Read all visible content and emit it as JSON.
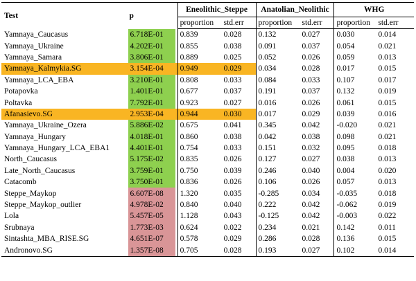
{
  "headers": {
    "test": "Test",
    "p": "p",
    "groups": [
      "Eneolithic_Steppe",
      "Anatolian_Neolithic",
      "WHG"
    ],
    "sub": [
      "proportion",
      "std.err"
    ]
  },
  "colors": {
    "green": "#8ed04f",
    "red": "#d99597",
    "highlight": "#f9b523"
  },
  "rows": [
    {
      "test": "Yamnaya_Caucasus",
      "p": "6.718E-01",
      "pc": "green",
      "hl": false,
      "v": [
        "0.839",
        "0.028",
        "0.132",
        "0.027",
        "0.030",
        "0.014"
      ]
    },
    {
      "test": "Yamnaya_Ukraine",
      "p": "4.202E-01",
      "pc": "green",
      "hl": false,
      "v": [
        "0.855",
        "0.038",
        "0.091",
        "0.037",
        "0.054",
        "0.021"
      ]
    },
    {
      "test": "Yamnaya_Samara",
      "p": "3.806E-01",
      "pc": "green",
      "hl": false,
      "v": [
        "0.889",
        "0.025",
        "0.052",
        "0.026",
        "0.059",
        "0.013"
      ]
    },
    {
      "test": "Yamnaya_Kalmykia.SG",
      "p": "3.154E-04",
      "pc": "",
      "hl": true,
      "v": [
        "0.949",
        "0.029",
        "0.034",
        "0.028",
        "0.017",
        "0.015"
      ]
    },
    {
      "test": "Yamnaya_LCA_EBA",
      "p": "3.210E-01",
      "pc": "green",
      "hl": false,
      "v": [
        "0.808",
        "0.033",
        "0.084",
        "0.033",
        "0.107",
        "0.017"
      ]
    },
    {
      "test": "Potapovka",
      "p": "1.401E-01",
      "pc": "green",
      "hl": false,
      "v": [
        "0.677",
        "0.037",
        "0.191",
        "0.037",
        "0.132",
        "0.019"
      ]
    },
    {
      "test": "Poltavka",
      "p": "7.792E-01",
      "pc": "green",
      "hl": false,
      "v": [
        "0.923",
        "0.027",
        "0.016",
        "0.026",
        "0.061",
        "0.015"
      ]
    },
    {
      "test": "Afanasievo.SG",
      "p": "2.953E-04",
      "pc": "",
      "hl": true,
      "v": [
        "0.944",
        "0.030",
        "0.017",
        "0.029",
        "0.039",
        "0.016"
      ]
    },
    {
      "test": "Yamnaya_Ukraine_Ozera",
      "p": "5.886E-02",
      "pc": "green",
      "hl": false,
      "v": [
        "0.675",
        "0.041",
        "0.345",
        "0.042",
        "-0.020",
        "0.021"
      ]
    },
    {
      "test": "Yamnaya_Hungary",
      "p": "4.018E-01",
      "pc": "green",
      "hl": false,
      "v": [
        "0.860",
        "0.038",
        "0.042",
        "0.038",
        "0.098",
        "0.021"
      ]
    },
    {
      "test": "Yamnaya_Hungary_LCA_EBA1",
      "p": "4.401E-01",
      "pc": "green",
      "hl": false,
      "v": [
        "0.754",
        "0.033",
        "0.151",
        "0.032",
        "0.095",
        "0.018"
      ]
    },
    {
      "test": "North_Caucasus",
      "p": "5.175E-02",
      "pc": "green",
      "hl": false,
      "v": [
        "0.835",
        "0.026",
        "0.127",
        "0.027",
        "0.038",
        "0.013"
      ]
    },
    {
      "test": "Late_North_Caucasus",
      "p": "3.759E-01",
      "pc": "green",
      "hl": false,
      "v": [
        "0.750",
        "0.039",
        "0.246",
        "0.040",
        "0.004",
        "0.020"
      ]
    },
    {
      "test": "Catacomb",
      "p": "3.750E-01",
      "pc": "green",
      "hl": false,
      "v": [
        "0.836",
        "0.026",
        "0.106",
        "0.026",
        "0.057",
        "0.013"
      ]
    },
    {
      "test": "Steppe_Maykop",
      "p": "6.607E-08",
      "pc": "red",
      "hl": false,
      "v": [
        "1.320",
        "0.035",
        "-0.285",
        "0.034",
        "-0.035",
        "0.018"
      ]
    },
    {
      "test": "Steppe_Maykop_outlier",
      "p": "4.978E-02",
      "pc": "red",
      "hl": false,
      "v": [
        "0.840",
        "0.040",
        "0.222",
        "0.042",
        "-0.062",
        "0.019"
      ]
    },
    {
      "test": "Lola",
      "p": "5.457E-05",
      "pc": "red",
      "hl": false,
      "v": [
        "1.128",
        "0.043",
        "-0.125",
        "0.042",
        "-0.003",
        "0.022"
      ]
    },
    {
      "test": "Srubnaya",
      "p": "1.773E-03",
      "pc": "red",
      "hl": false,
      "v": [
        "0.624",
        "0.022",
        "0.234",
        "0.021",
        "0.142",
        "0.011"
      ]
    },
    {
      "test": "Sintashta_MBA_RISE.SG",
      "p": "4.651E-07",
      "pc": "red",
      "hl": false,
      "v": [
        "0.578",
        "0.029",
        "0.286",
        "0.028",
        "0.136",
        "0.015"
      ]
    },
    {
      "test": "Andronovo.SG",
      "p": "1.357E-08",
      "pc": "red",
      "hl": false,
      "v": [
        "0.705",
        "0.028",
        "0.193",
        "0.027",
        "0.102",
        "0.014"
      ]
    }
  ]
}
